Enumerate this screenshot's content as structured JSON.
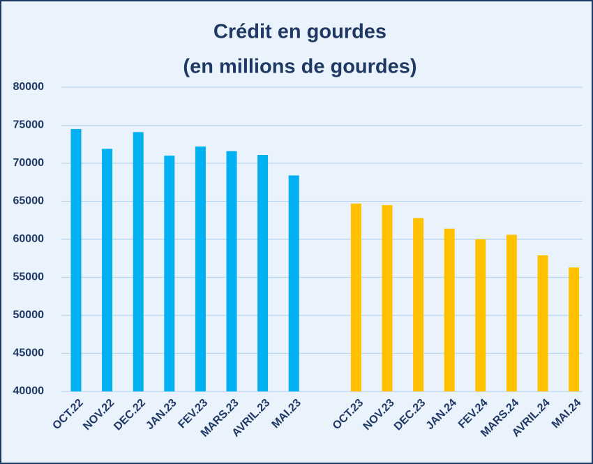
{
  "chart_data": {
    "type": "bar",
    "title": [
      "Crédit en gourdes",
      "(en millions de gourdes)"
    ],
    "categories": [
      "OCT.22",
      "NOV.22",
      "DEC.22",
      "JAN.23",
      "FEV.23",
      "MARS.23",
      "AVRIL.23",
      "MAI.23",
      null,
      "OCT.23",
      "NOV.23",
      "DEC.23",
      "JAN.24",
      "FEV.24",
      "MARS.24",
      "AVRIL.24",
      "MAI.24"
    ],
    "values": [
      74500,
      71900,
      74100,
      71000,
      72200,
      71600,
      71100,
      68400,
      null,
      64700,
      64500,
      62800,
      61400,
      60000,
      60600,
      57900,
      56300
    ],
    "colors": [
      "#00b0f0",
      "#00b0f0",
      "#00b0f0",
      "#00b0f0",
      "#00b0f0",
      "#00b0f0",
      "#00b0f0",
      "#00b0f0",
      null,
      "#ffc000",
      "#ffc000",
      "#ffc000",
      "#ffc000",
      "#ffc000",
      "#ffc000",
      "#ffc000",
      "#ffc000"
    ],
    "ylim": [
      40000,
      80000
    ],
    "yticks": [
      40000,
      45000,
      50000,
      55000,
      60000,
      65000,
      70000,
      75000,
      80000
    ],
    "grid": true
  }
}
